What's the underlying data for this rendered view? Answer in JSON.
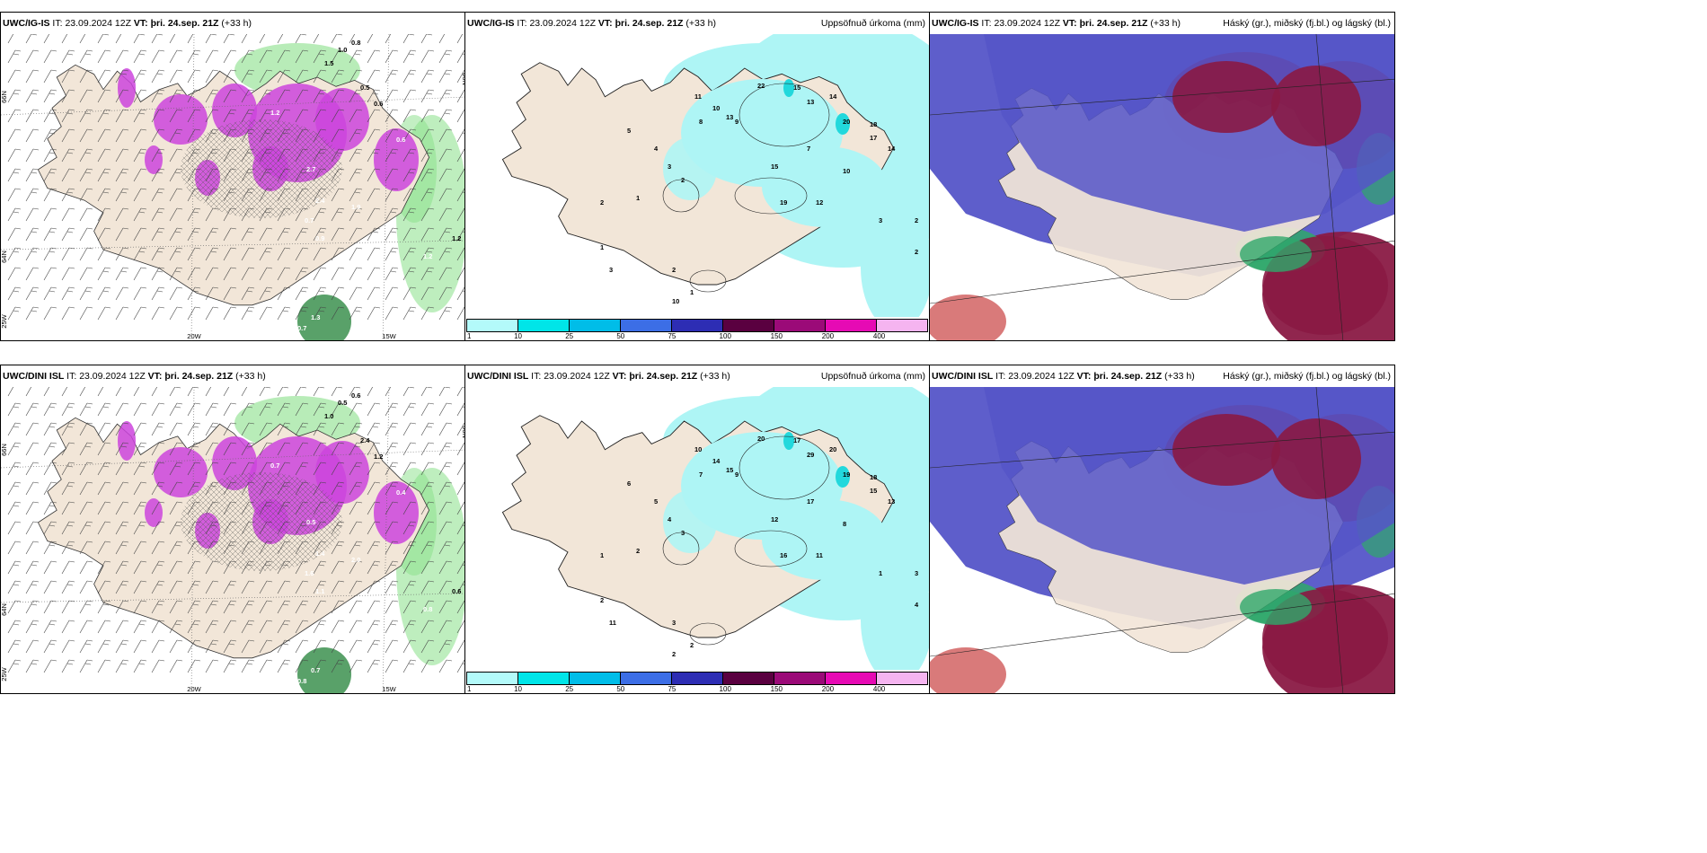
{
  "panels": [
    {
      "model": "UWC/IG-IS",
      "it_label": "IT:",
      "it_value": "23.09.2024 12Z",
      "vt_label": "VT:",
      "vt_value": "þri. 24.sep. 21Z",
      "lead": "(+33 h)",
      "right_title": "",
      "kind": "wind",
      "lon_labels": [
        "20W",
        "15W"
      ],
      "lat_labels": [
        "66N",
        "64N",
        "25W",
        "66N"
      ],
      "values": [
        "1.0",
        "0.8",
        "1.5",
        "0.5",
        "0.6",
        "1.2",
        "2.7",
        "2.4",
        "1.9",
        "0.7",
        "1.2",
        "0.9",
        "0.6",
        "1.2",
        "0.7",
        "1.3"
      ]
    },
    {
      "model": "UWC/IG-IS",
      "it_label": "IT:",
      "it_value": "23.09.2024 12Z",
      "vt_label": "VT:",
      "vt_value": "þri. 24.sep. 21Z",
      "lead": "(+33 h)",
      "right_title": "Uppsöfnuð úrkoma (mm)",
      "kind": "precip",
      "values": [
        "22",
        "15",
        "13",
        "14",
        "20",
        "18",
        "17",
        "14",
        "15",
        "12",
        "11",
        "10",
        "13",
        "19",
        "7",
        "10",
        "9",
        "8",
        "5",
        "4",
        "3",
        "2",
        "1",
        "2",
        "3",
        "1",
        "2",
        "1",
        "10",
        "3",
        "2",
        "2"
      ]
    },
    {
      "model": "UWC/IG-IS",
      "it_label": "IT:",
      "it_value": "23.09.2024 12Z",
      "vt_label": "VT:",
      "vt_value": "þri. 24.sep. 21Z",
      "lead": "(+33 h)",
      "right_title": "Háský (gr.), miðský (fj.bl.) og lágský (bl.)",
      "kind": "cloud"
    },
    {
      "model": "UWC/DINI ISL",
      "it_label": "IT:",
      "it_value": "23.09.2024 12Z",
      "vt_label": "VT:",
      "vt_value": "þri. 24.sep. 21Z",
      "lead": "(+33 h)",
      "right_title": "",
      "kind": "wind",
      "lon_labels": [
        "20W",
        "15W"
      ],
      "lat_labels": [
        "66N",
        "64N",
        "25W",
        "66N"
      ],
      "values": [
        "0.5",
        "0.6",
        "1.0",
        "2.4",
        "1.2",
        "0.6",
        "0.5",
        "1.4",
        "2.0",
        "1.6",
        "0.8",
        "1.1",
        "0.4",
        "0.7",
        "0.8",
        "0.7"
      ]
    },
    {
      "model": "UWC/DINI ISL",
      "it_label": "IT:",
      "it_value": "23.09.2024 12Z",
      "vt_label": "VT:",
      "vt_value": "þri. 24.sep. 21Z",
      "lead": "(+33 h)",
      "right_title": "Uppsöfnuð úrkoma (mm)",
      "kind": "precip",
      "values": [
        "20",
        "17",
        "29",
        "20",
        "19",
        "18",
        "15",
        "13",
        "12",
        "11",
        "10",
        "14",
        "15",
        "16",
        "17",
        "8",
        "9",
        "7",
        "6",
        "5",
        "4",
        "3",
        "2",
        "1",
        "11",
        "2",
        "3",
        "2",
        "2",
        "1",
        "3",
        "4"
      ]
    },
    {
      "model": "UWC/DINI ISL",
      "it_label": "IT:",
      "it_value": "23.09.2024 12Z",
      "vt_label": "VT:",
      "vt_value": "þri. 24.sep. 21Z",
      "lead": "(+33 h)",
      "right_title": "Háský (gr.), miðský (fj.bl.) og lágský (bl.)",
      "kind": "cloud"
    }
  ],
  "colorbar": {
    "ticks": [
      "1",
      "10",
      "25",
      "50",
      "75",
      "100",
      "150",
      "200",
      "400"
    ],
    "colors": [
      "#b3fafa",
      "#00e5e8",
      "#00bde8",
      "#3c6ee6",
      "#2d2db4",
      "#5a0040",
      "#9b0a78",
      "#e60ab4",
      "#f5b4f0"
    ]
  },
  "palette": {
    "land": "#f2e6d8",
    "snow_purple": "#cc44dd",
    "wind_green": "#88e088",
    "precip_cyan": "#aef5f5",
    "cloud_blue": "#5555c8",
    "cloud_red": "#8a1a44",
    "cloud_green": "#2fa86a"
  }
}
